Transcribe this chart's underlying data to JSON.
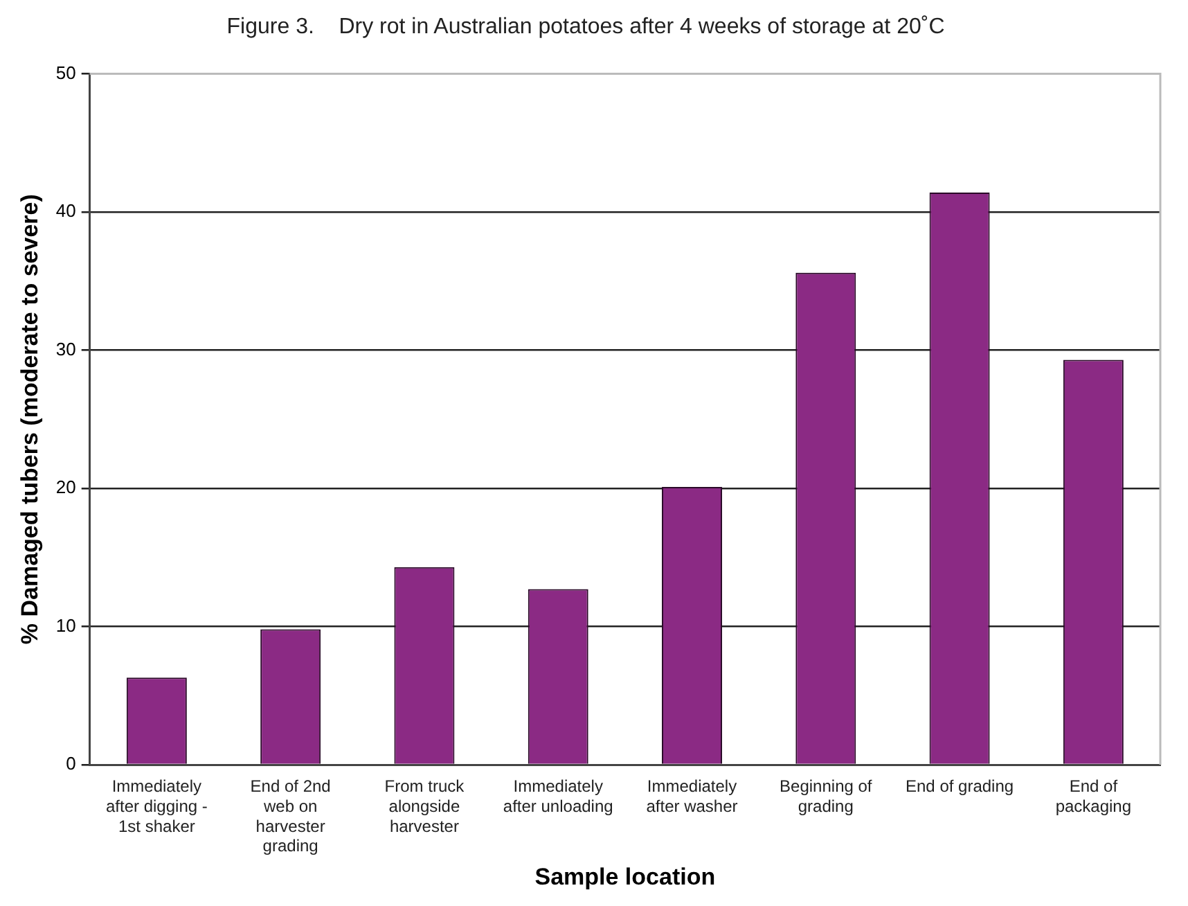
{
  "chart_data": {
    "type": "bar",
    "title": "Figure 3.    Dry rot in Australian potatoes after 4 weeks of storage at 20˚C",
    "xlabel": "Sample location",
    "ylabel": "% Damaged tubers (moderate to severe)",
    "categories": [
      "Immediately after digging - 1st shaker",
      "End of 2nd web on harvester grading",
      "From truck alongside harvester",
      "Immediately after unloading",
      "Immediately after washer",
      "Beginning of grading",
      "End of grading",
      "End of packaging"
    ],
    "values": [
      6.3,
      9.8,
      14.3,
      12.7,
      20.1,
      35.6,
      41.4,
      29.3
    ],
    "color": "#8b2a84",
    "ylim": [
      0,
      50
    ],
    "yticks": [
      0,
      10,
      20,
      30,
      40,
      50
    ],
    "grid": "y"
  }
}
